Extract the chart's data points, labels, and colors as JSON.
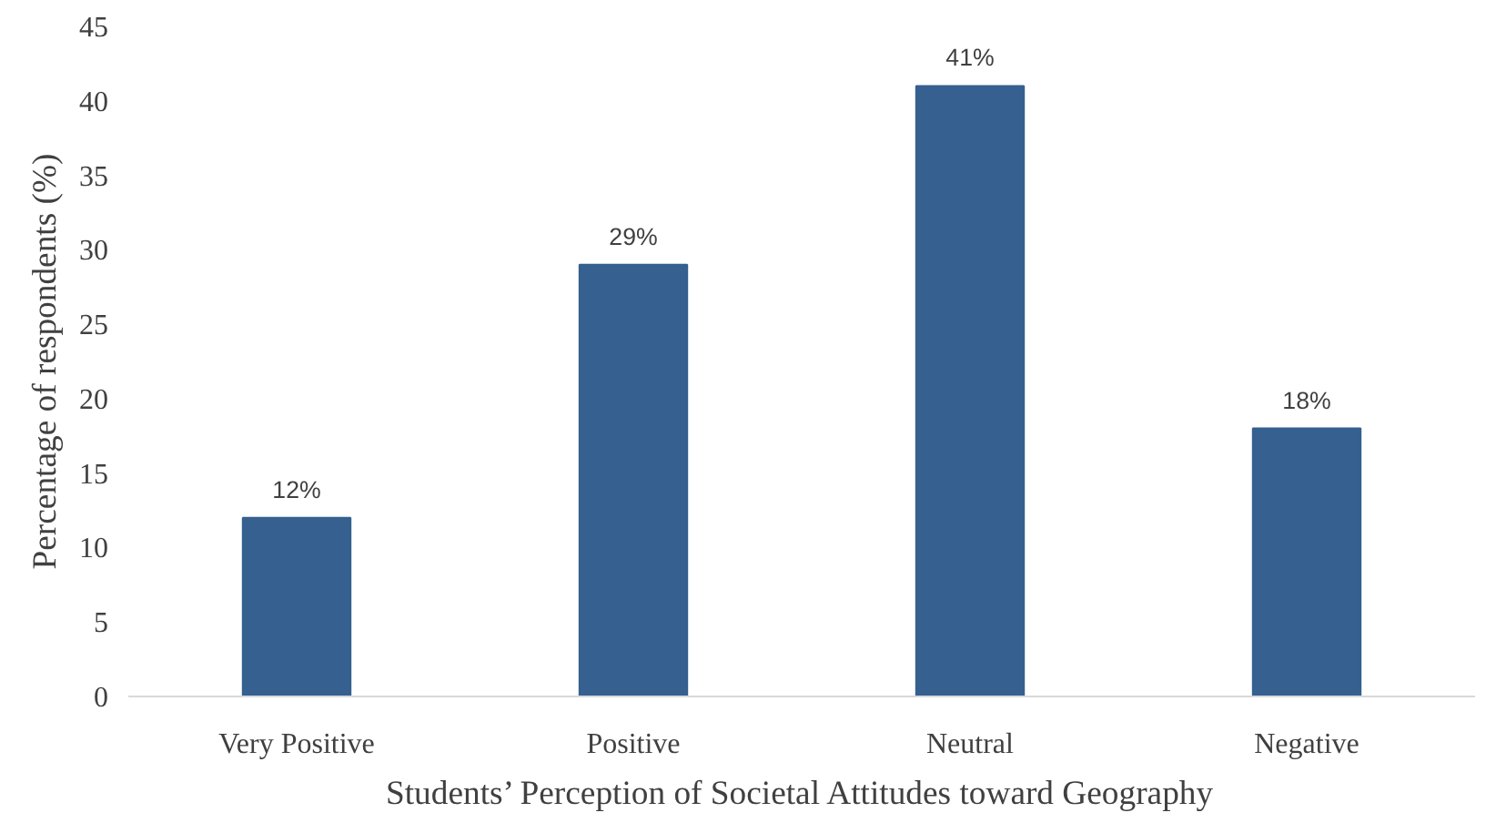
{
  "chart_data": {
    "type": "bar",
    "xlabel": "Students’ Perception of Societal Attitudes toward Geography",
    "ylabel": "Percentage of respondents (%)",
    "categories": [
      "Very Positive",
      "Positive",
      "Neutral",
      "Negative"
    ],
    "values": [
      12,
      29,
      41,
      18
    ],
    "color": "#35608f",
    "value_labels": [
      "12%",
      "29%",
      "41%",
      "18%"
    ],
    "ylim": [
      0,
      45
    ],
    "yticks": [
      0,
      5,
      10,
      15,
      20,
      25,
      30,
      35,
      40,
      45
    ],
    "grid": false
  }
}
